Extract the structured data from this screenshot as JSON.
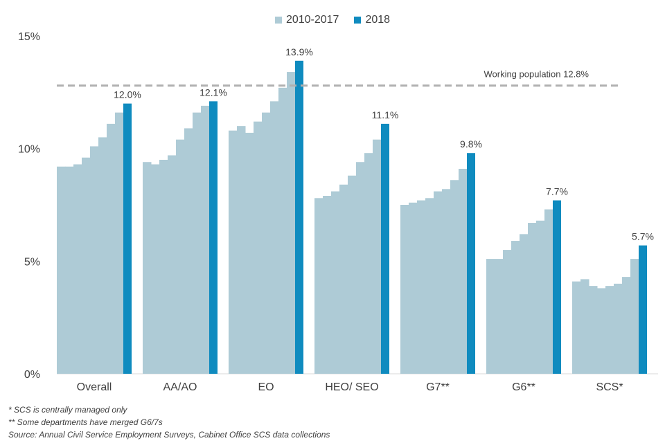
{
  "legend": {
    "historic_label": "2010-2017",
    "current_label": "2018"
  },
  "colors": {
    "historic": "#aecbd6",
    "current": "#0f8bbf",
    "reference_line": "#b0b0b0",
    "text": "#404040"
  },
  "footnotes": [
    "* SCS is centrally managed only",
    "** Some departments have merged G6/7s",
    "Source: Annual Civil Service Employment Surveys, Cabinet Office SCS data collections"
  ],
  "chart_data": {
    "type": "bar",
    "ylim": [
      0,
      15
    ],
    "yticks": [
      {
        "value": 0,
        "label": "0%"
      },
      {
        "value": 5,
        "label": "5%"
      },
      {
        "value": 10,
        "label": "10%"
      },
      {
        "value": 15,
        "label": "15%"
      }
    ],
    "reference_line": {
      "value": 12.8,
      "label": "Working population 12.8%"
    },
    "categories": [
      "Overall",
      "AA/AO",
      "EO",
      "HEO/ SEO",
      "G7**",
      "G6**",
      "SCS*"
    ],
    "series": [
      {
        "name": "2010-2017",
        "years": [
          2010,
          2011,
          2012,
          2013,
          2014,
          2015,
          2016,
          2017
        ],
        "values": [
          [
            9.2,
            9.2,
            9.3,
            9.6,
            10.1,
            10.5,
            11.1,
            11.6
          ],
          [
            9.4,
            9.3,
            9.5,
            9.7,
            10.4,
            10.9,
            11.6,
            11.9
          ],
          [
            10.8,
            11.0,
            10.7,
            11.2,
            11.6,
            12.1,
            12.7,
            13.4
          ],
          [
            7.8,
            7.9,
            8.1,
            8.4,
            8.8,
            9.4,
            9.8,
            10.4
          ],
          [
            7.5,
            7.6,
            7.7,
            7.8,
            8.1,
            8.2,
            8.6,
            9.1
          ],
          [
            5.1,
            5.1,
            5.5,
            5.9,
            6.2,
            6.7,
            6.8,
            7.3
          ],
          [
            4.1,
            4.2,
            3.9,
            3.8,
            3.9,
            4.0,
            4.3,
            5.1
          ]
        ]
      },
      {
        "name": "2018",
        "values": [
          12.0,
          12.1,
          13.9,
          11.1,
          9.8,
          7.7,
          5.7
        ],
        "labels": [
          "12.0%",
          "12.1%",
          "13.9%",
          "11.1%",
          "9.8%",
          "7.7%",
          "5.7%"
        ]
      }
    ]
  }
}
